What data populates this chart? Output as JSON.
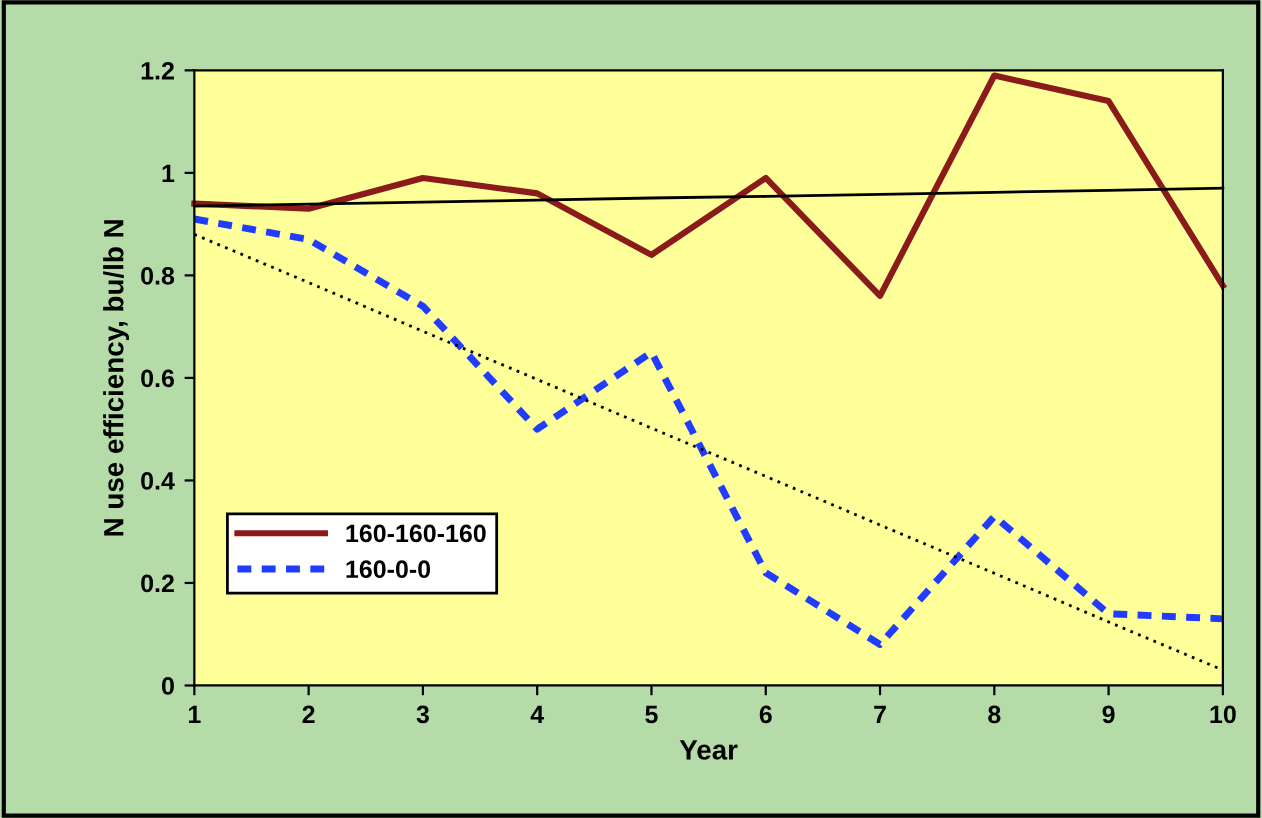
{
  "chart_data": {
    "type": "line",
    "xlabel": "Year",
    "ylabel": "N use efficiency, bu/lb N",
    "x": [
      1,
      2,
      3,
      4,
      5,
      6,
      7,
      8,
      9,
      10
    ],
    "series": [
      {
        "name": "160-160-160",
        "color": "#8b1a1a",
        "line_style": "solid",
        "values": [
          0.94,
          0.93,
          0.99,
          0.96,
          0.84,
          0.99,
          0.76,
          1.19,
          1.14,
          0.78
        ]
      },
      {
        "name": "160-0-0",
        "color": "#1f3cff",
        "line_style": "dashed",
        "values": [
          0.91,
          0.87,
          0.74,
          0.5,
          0.65,
          0.22,
          0.08,
          0.33,
          0.14,
          0.13
        ]
      },
      {
        "color": "#000000",
        "line_style": "solid",
        "values": [
          0.935,
          0.939,
          0.943,
          0.947,
          0.951,
          0.954,
          0.958,
          0.962,
          0.966,
          0.97
        ]
      },
      {
        "color": "#000000",
        "line_style": "dotted",
        "values": [
          0.88,
          0.786,
          0.691,
          0.597,
          0.502,
          0.408,
          0.313,
          0.219,
          0.124,
          0.03
        ]
      }
    ],
    "xlim": [
      1,
      10
    ],
    "xticks": [
      1,
      2,
      3,
      4,
      5,
      6,
      7,
      8,
      9,
      10
    ],
    "ylim": [
      0,
      1.2
    ],
    "yticks": [
      0,
      0.2,
      0.4,
      0.6,
      0.8,
      1,
      1.2
    ],
    "grid": false,
    "legend": "bottom left",
    "marker": "none"
  }
}
